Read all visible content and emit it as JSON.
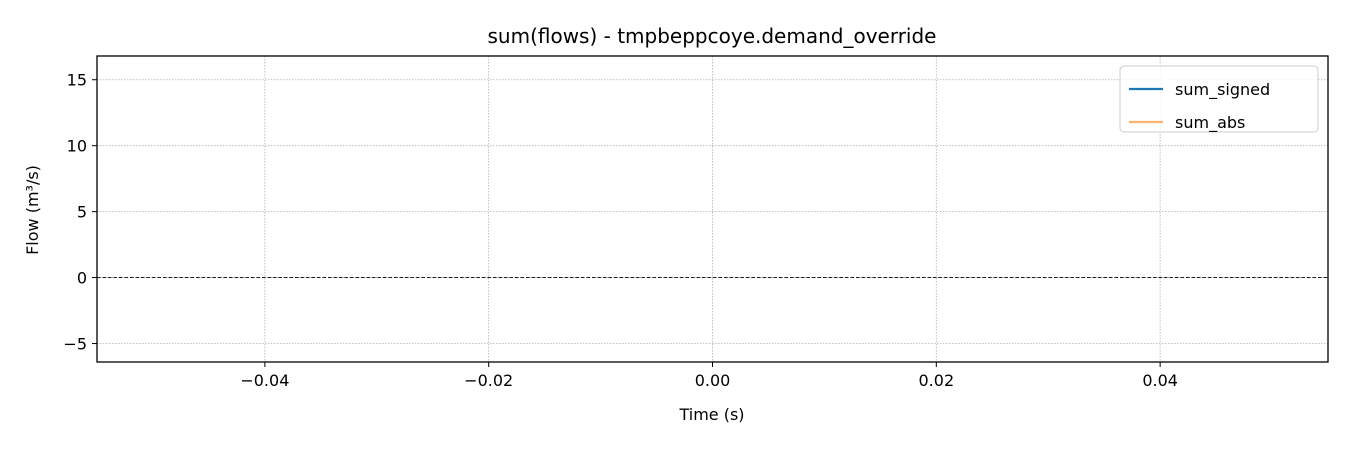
{
  "chart_data": {
    "type": "line",
    "title": "sum(flows) - tmpbeppcoye.demand_override",
    "xlabel": "Time (s)",
    "ylabel": "Flow (m³/s)",
    "xlim": [
      -0.055,
      0.055
    ],
    "ylim": [
      -6.4,
      16.8
    ],
    "x_ticks": [
      -0.04,
      -0.02,
      0.0,
      0.02,
      0.04
    ],
    "x_tick_labels": [
      "−0.04",
      "−0.02",
      "0.00",
      "0.02",
      "0.04"
    ],
    "y_ticks": [
      -5,
      0,
      5,
      10,
      15
    ],
    "y_tick_labels": [
      "−5",
      "0",
      "5",
      "10",
      "15"
    ],
    "grid": true,
    "reference_line": {
      "y": 0,
      "style": "dashed",
      "color": "#000000"
    },
    "legend": {
      "placement": "top-right"
    },
    "series": [
      {
        "name": "sum_signed",
        "color": "#1f77b4",
        "x": [],
        "y": []
      },
      {
        "name": "sum_abs",
        "color": "#ffb26e",
        "x": [],
        "y": []
      }
    ]
  }
}
